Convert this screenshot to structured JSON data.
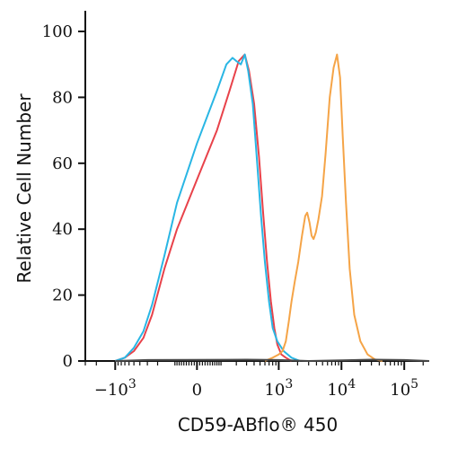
{
  "chart_data": {
    "type": "line",
    "subtype": "flow-cytometry-histogram",
    "xlabel": "CD59-ABflo® 450",
    "ylabel": "Relative Cell Number",
    "x_scale": "biexponential",
    "ylim": [
      0,
      100
    ],
    "yticks": [
      0,
      20,
      40,
      60,
      80,
      100
    ],
    "xticks": [
      {
        "value": -1000,
        "base": "−10",
        "exp": "3"
      },
      {
        "value": 0,
        "base": "0",
        "exp": ""
      },
      {
        "value": 1000,
        "base": "10",
        "exp": "3"
      },
      {
        "value": 10000,
        "base": "10",
        "exp": "4"
      },
      {
        "value": 100000,
        "base": "10",
        "exp": "5"
      }
    ],
    "grid": false,
    "legend": "none",
    "series": [
      {
        "color": "#e8424a",
        "points": [
          [
            -1000,
            0
          ],
          [
            -700,
            1
          ],
          [
            -500,
            3
          ],
          [
            -350,
            7
          ],
          [
            -250,
            14
          ],
          [
            -150,
            28
          ],
          [
            -80,
            40
          ],
          [
            0,
            55
          ],
          [
            80,
            70
          ],
          [
            150,
            82
          ],
          [
            220,
            91
          ],
          [
            280,
            93
          ],
          [
            330,
            88
          ],
          [
            400,
            78
          ],
          [
            480,
            62
          ],
          [
            560,
            45
          ],
          [
            650,
            30
          ],
          [
            750,
            18
          ],
          [
            850,
            10
          ],
          [
            950,
            5
          ],
          [
            1100,
            2
          ],
          [
            1300,
            1
          ],
          [
            1600,
            0
          ]
        ]
      },
      {
        "color": "#29b6e4",
        "points": [
          [
            -1000,
            0
          ],
          [
            -700,
            1
          ],
          [
            -500,
            4
          ],
          [
            -350,
            9
          ],
          [
            -250,
            17
          ],
          [
            -150,
            32
          ],
          [
            -80,
            48
          ],
          [
            0,
            66
          ],
          [
            80,
            82
          ],
          [
            130,
            90
          ],
          [
            170,
            92
          ],
          [
            200,
            91
          ],
          [
            240,
            90
          ],
          [
            280,
            93
          ],
          [
            320,
            88
          ],
          [
            380,
            78
          ],
          [
            450,
            60
          ],
          [
            520,
            44
          ],
          [
            600,
            30
          ],
          [
            700,
            18
          ],
          [
            800,
            10
          ],
          [
            950,
            6
          ],
          [
            1200,
            3
          ],
          [
            1600,
            1
          ],
          [
            2200,
            0
          ]
        ]
      },
      {
        "color": "#f5a447",
        "points": [
          [
            600,
            0
          ],
          [
            800,
            1
          ],
          [
            1000,
            2
          ],
          [
            1150,
            3
          ],
          [
            1300,
            6
          ],
          [
            1450,
            12
          ],
          [
            1600,
            18
          ],
          [
            1800,
            24
          ],
          [
            2050,
            30
          ],
          [
            2350,
            38
          ],
          [
            2650,
            44
          ],
          [
            2850,
            45
          ],
          [
            3100,
            42
          ],
          [
            3350,
            38
          ],
          [
            3600,
            37
          ],
          [
            3900,
            39
          ],
          [
            4300,
            43
          ],
          [
            4900,
            50
          ],
          [
            5600,
            63
          ],
          [
            6500,
            80
          ],
          [
            7500,
            89
          ],
          [
            8500,
            93
          ],
          [
            9500,
            86
          ],
          [
            10500,
            68
          ],
          [
            11800,
            48
          ],
          [
            13500,
            28
          ],
          [
            16000,
            14
          ],
          [
            20000,
            6
          ],
          [
            26000,
            2
          ],
          [
            34000,
            0.5
          ],
          [
            45000,
            0
          ]
        ]
      },
      {
        "color": "#4a4a4a",
        "points": [
          [
            -1000,
            0
          ],
          [
            -300,
            0.3
          ],
          [
            300,
            0.4
          ],
          [
            1000,
            0.3
          ],
          [
            3000,
            0
          ],
          [
            10000,
            0.2
          ],
          [
            30000,
            0.4
          ],
          [
            100000,
            0.3
          ],
          [
            250000,
            0
          ]
        ]
      }
    ]
  }
}
